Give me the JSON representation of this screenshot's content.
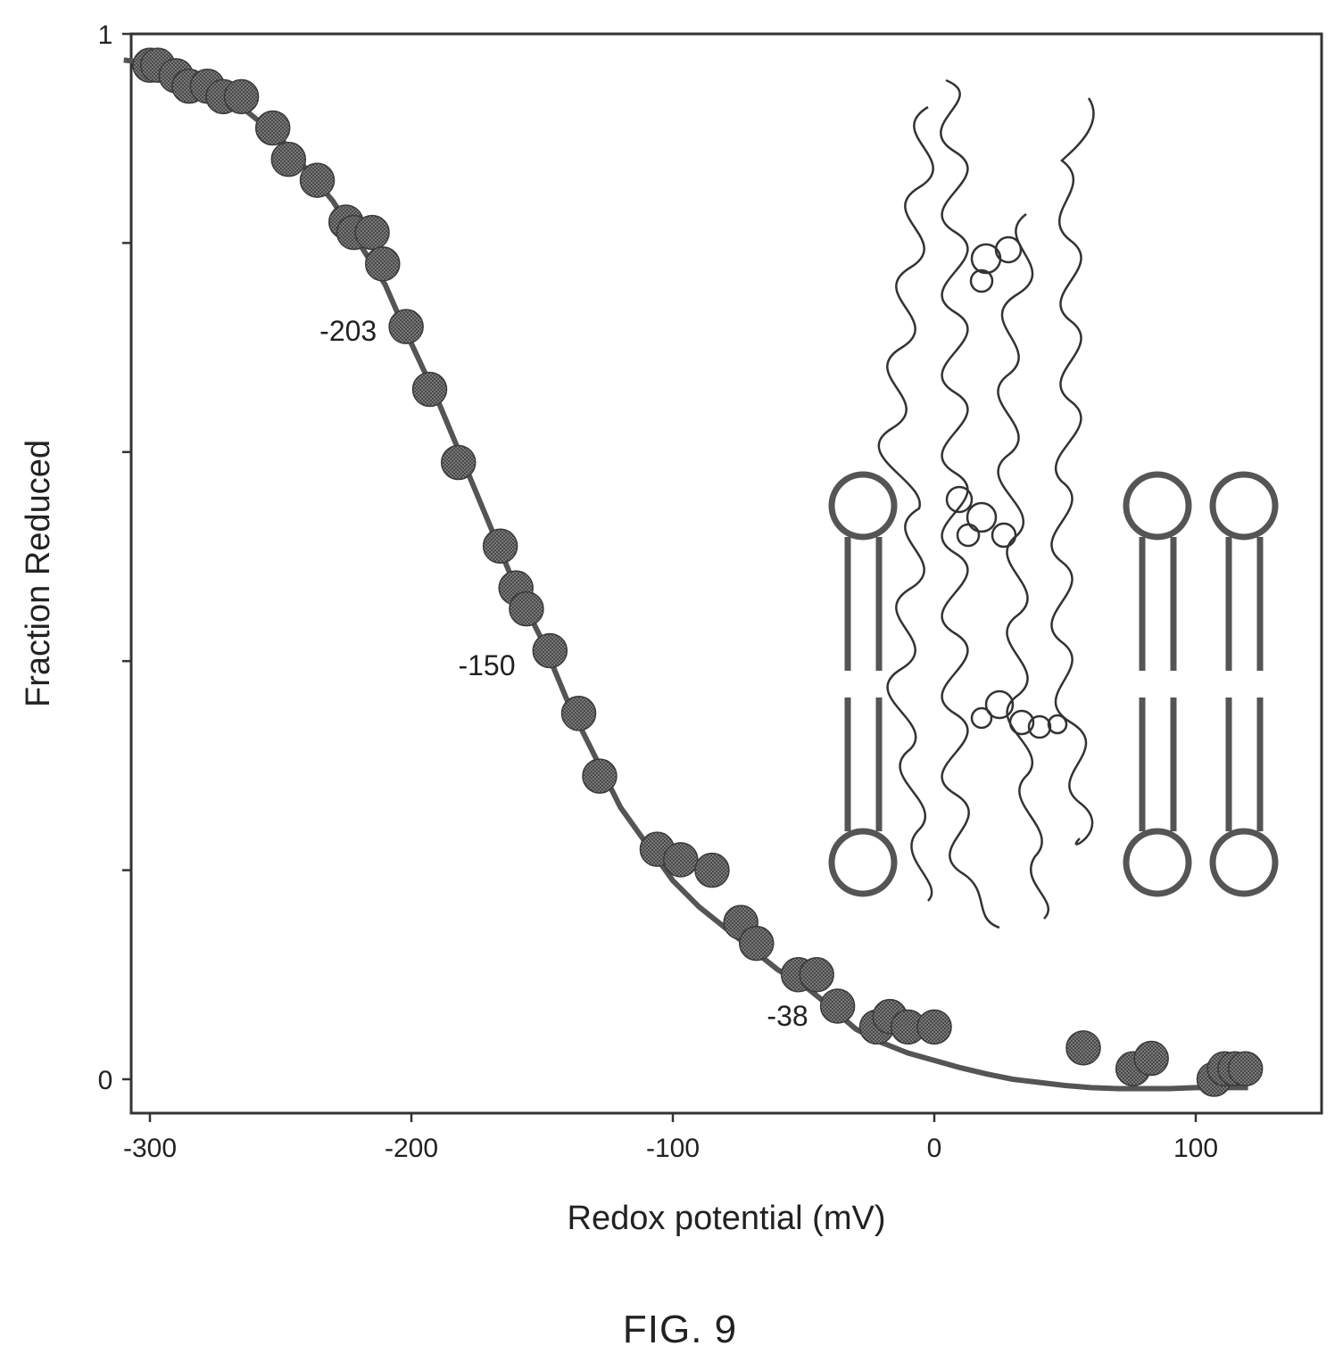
{
  "figure_label": "FIG. 9",
  "chart_data": {
    "type": "scatter",
    "xlabel": "Redox potential (mV)",
    "ylabel": "Fraction Reduced",
    "xlim": [
      -310,
      150
    ],
    "ylim": [
      -0.08,
      1.0
    ],
    "x_ticks": [
      -300,
      -200,
      -100,
      0,
      100
    ],
    "x_tick_labels": [
      "-300",
      "-200",
      "-100",
      "0",
      "100"
    ],
    "y_ticks": [
      0,
      0.2,
      0.4,
      0.6,
      0.8,
      1
    ],
    "y_tick_labels": [
      "0",
      "",
      "",
      "",
      "",
      "1"
    ],
    "grid": false,
    "legend": "none",
    "colors": {
      "points": "#555555",
      "curve": "#555555",
      "axes": "#333333"
    },
    "points": {
      "x": [
        -300,
        -297,
        -290,
        -285,
        -278,
        -272,
        -265,
        -253,
        -247,
        -236,
        -225,
        -222,
        -215,
        -211,
        -202,
        -193,
        -182,
        -166,
        -160,
        -156,
        -147,
        -136,
        -128,
        -106,
        -97,
        -85,
        -74,
        -68,
        -52,
        -45,
        -37,
        -22,
        -17,
        -10,
        0,
        57,
        76,
        83,
        107,
        111,
        115,
        119
      ],
      "y": [
        0.97,
        0.97,
        0.96,
        0.95,
        0.95,
        0.94,
        0.94,
        0.91,
        0.88,
        0.86,
        0.82,
        0.81,
        0.81,
        0.78,
        0.72,
        0.66,
        0.59,
        0.51,
        0.47,
        0.45,
        0.41,
        0.35,
        0.29,
        0.22,
        0.21,
        0.2,
        0.15,
        0.13,
        0.1,
        0.1,
        0.07,
        0.05,
        0.06,
        0.05,
        0.05,
        0.03,
        0.01,
        0.02,
        0.0,
        0.01,
        0.01,
        0.01
      ],
      "marker": "filled-circle"
    },
    "fit_curve": {
      "x": [
        -310,
        -300,
        -290,
        -280,
        -270,
        -260,
        -250,
        -240,
        -230,
        -220,
        -210,
        -203,
        -190,
        -180,
        -170,
        -160,
        -150,
        -140,
        -130,
        -120,
        -110,
        -100,
        -90,
        -80,
        -70,
        -60,
        -50,
        -40,
        -38,
        -30,
        -20,
        -10,
        0,
        10,
        20,
        30,
        40,
        50,
        60,
        70,
        80,
        90,
        100,
        110,
        120
      ],
      "y": [
        0.975,
        0.972,
        0.965,
        0.955,
        0.94,
        0.92,
        0.9,
        0.87,
        0.84,
        0.8,
        0.76,
        0.72,
        0.65,
        0.59,
        0.53,
        0.47,
        0.42,
        0.36,
        0.31,
        0.26,
        0.225,
        0.19,
        0.165,
        0.145,
        0.125,
        0.105,
        0.09,
        0.07,
        0.065,
        0.048,
        0.035,
        0.025,
        0.018,
        0.011,
        0.005,
        0.0,
        -0.003,
        -0.006,
        -0.008,
        -0.009,
        -0.009,
        -0.009,
        -0.008,
        -0.008,
        -0.008
      ]
    },
    "annotations": [
      {
        "text": "-203",
        "x": -203,
        "y": 0.72
      },
      {
        "text": "-150",
        "x": -150,
        "y": 0.4
      },
      {
        "text": "-38",
        "x": -38,
        "y": 0.065
      }
    ]
  },
  "inset": {
    "content": "membrane protein ribbon drawn within a lipid bilayer"
  }
}
